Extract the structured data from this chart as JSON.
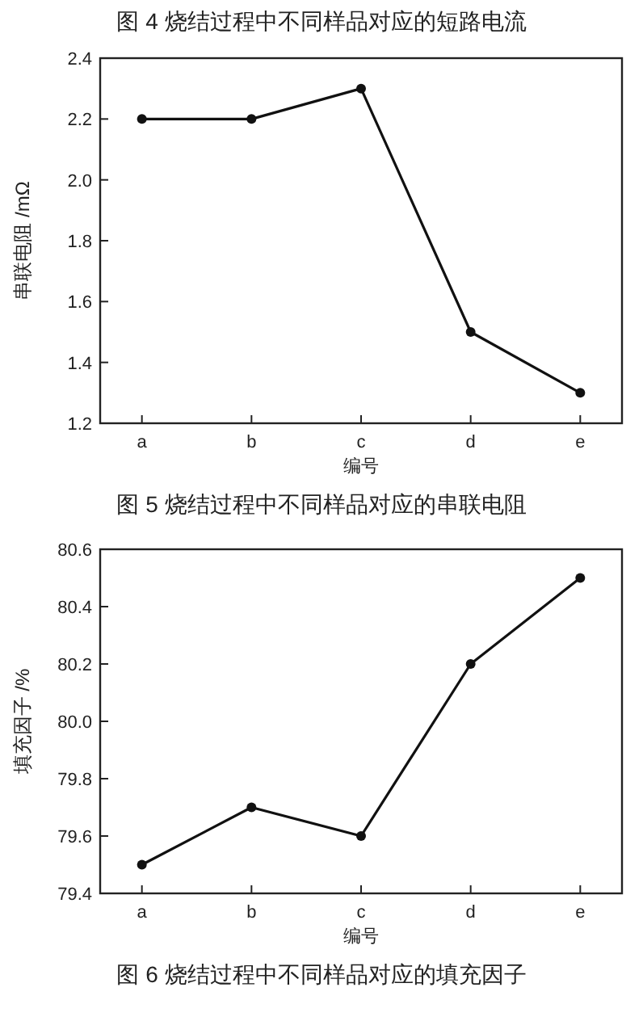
{
  "chart_data": [
    {
      "type": "line",
      "annotations": [
        "图 4 烧结过程中不同样品对应的短路电流",
        "图 5 烧结过程中不同样品对应的串联电阻"
      ],
      "xlabel": "编号",
      "ylabel": "串联电阻 /mΩ",
      "categories": [
        "a",
        "b",
        "c",
        "d",
        "e"
      ],
      "series": [
        {
          "color": "#111111",
          "values": [
            2.2,
            2.2,
            2.3,
            1.5,
            1.3
          ]
        }
      ],
      "ylim": [
        1.2,
        2.4
      ],
      "yticks": [
        1.2,
        1.4,
        1.6,
        1.8,
        {
          "value": 2,
          "label": "2.0"
        },
        2.2,
        2.4
      ],
      "marker": "circle",
      "line_style": "solid",
      "grid": false
    },
    {
      "type": "line",
      "annotations": [
        "图 6 烧结过程中不同样品对应的填充因子"
      ],
      "xlabel": "编号",
      "ylabel": "填充因子 /%",
      "categories": [
        "a",
        "b",
        "c",
        "d",
        "e"
      ],
      "series": [
        {
          "color": "#111111",
          "values": [
            79.5,
            79.7,
            79.6,
            80.2,
            80.5
          ]
        }
      ],
      "ylim": [
        79.4,
        80.6
      ],
      "yticks": [
        79.4,
        79.6,
        79.8,
        {
          "value": 80,
          "label": "80.0"
        },
        80.2,
        80.4,
        80.6
      ],
      "marker": "circle",
      "line_style": "solid",
      "grid": false
    }
  ]
}
